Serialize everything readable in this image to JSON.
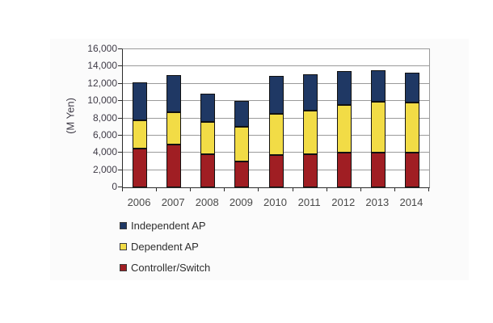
{
  "chart_data": {
    "type": "bar",
    "stacked": true,
    "title": "",
    "xlabel": "",
    "ylabel": "(M Yen)",
    "categories": [
      "2006",
      "2007",
      "2008",
      "2009",
      "2010",
      "2011",
      "2012",
      "2013",
      "2014"
    ],
    "series": [
      {
        "name": "Controller/Switch",
        "color": "#A01E23",
        "values": [
          4500,
          5000,
          3800,
          3000,
          3700,
          3800,
          4000,
          4000,
          4000
        ]
      },
      {
        "name": "Dependent AP",
        "color": "#F2DC46",
        "values": [
          3300,
          3700,
          3800,
          4000,
          4800,
          5100,
          5500,
          5900,
          5800
        ]
      },
      {
        "name": "Independent AP",
        "color": "#1F3864",
        "values": [
          4400,
          4300,
          3300,
          3000,
          4400,
          4200,
          4000,
          3700,
          3500
        ]
      }
    ],
    "totals": [
      12200,
      13000,
      10900,
      10000,
      12900,
      13100,
      13500,
      13600,
      13300
    ],
    "ylim": [
      0,
      16000
    ],
    "y_tick_step": 2000,
    "y_ticks": [
      "0",
      "2,000",
      "4,000",
      "6,000",
      "8,000",
      "10,000",
      "12,000",
      "14,000",
      "16,000"
    ],
    "grid": true,
    "legend_position": "bottom-left",
    "legend_order": [
      "Independent AP",
      "Dependent AP",
      "Controller/Switch"
    ]
  }
}
